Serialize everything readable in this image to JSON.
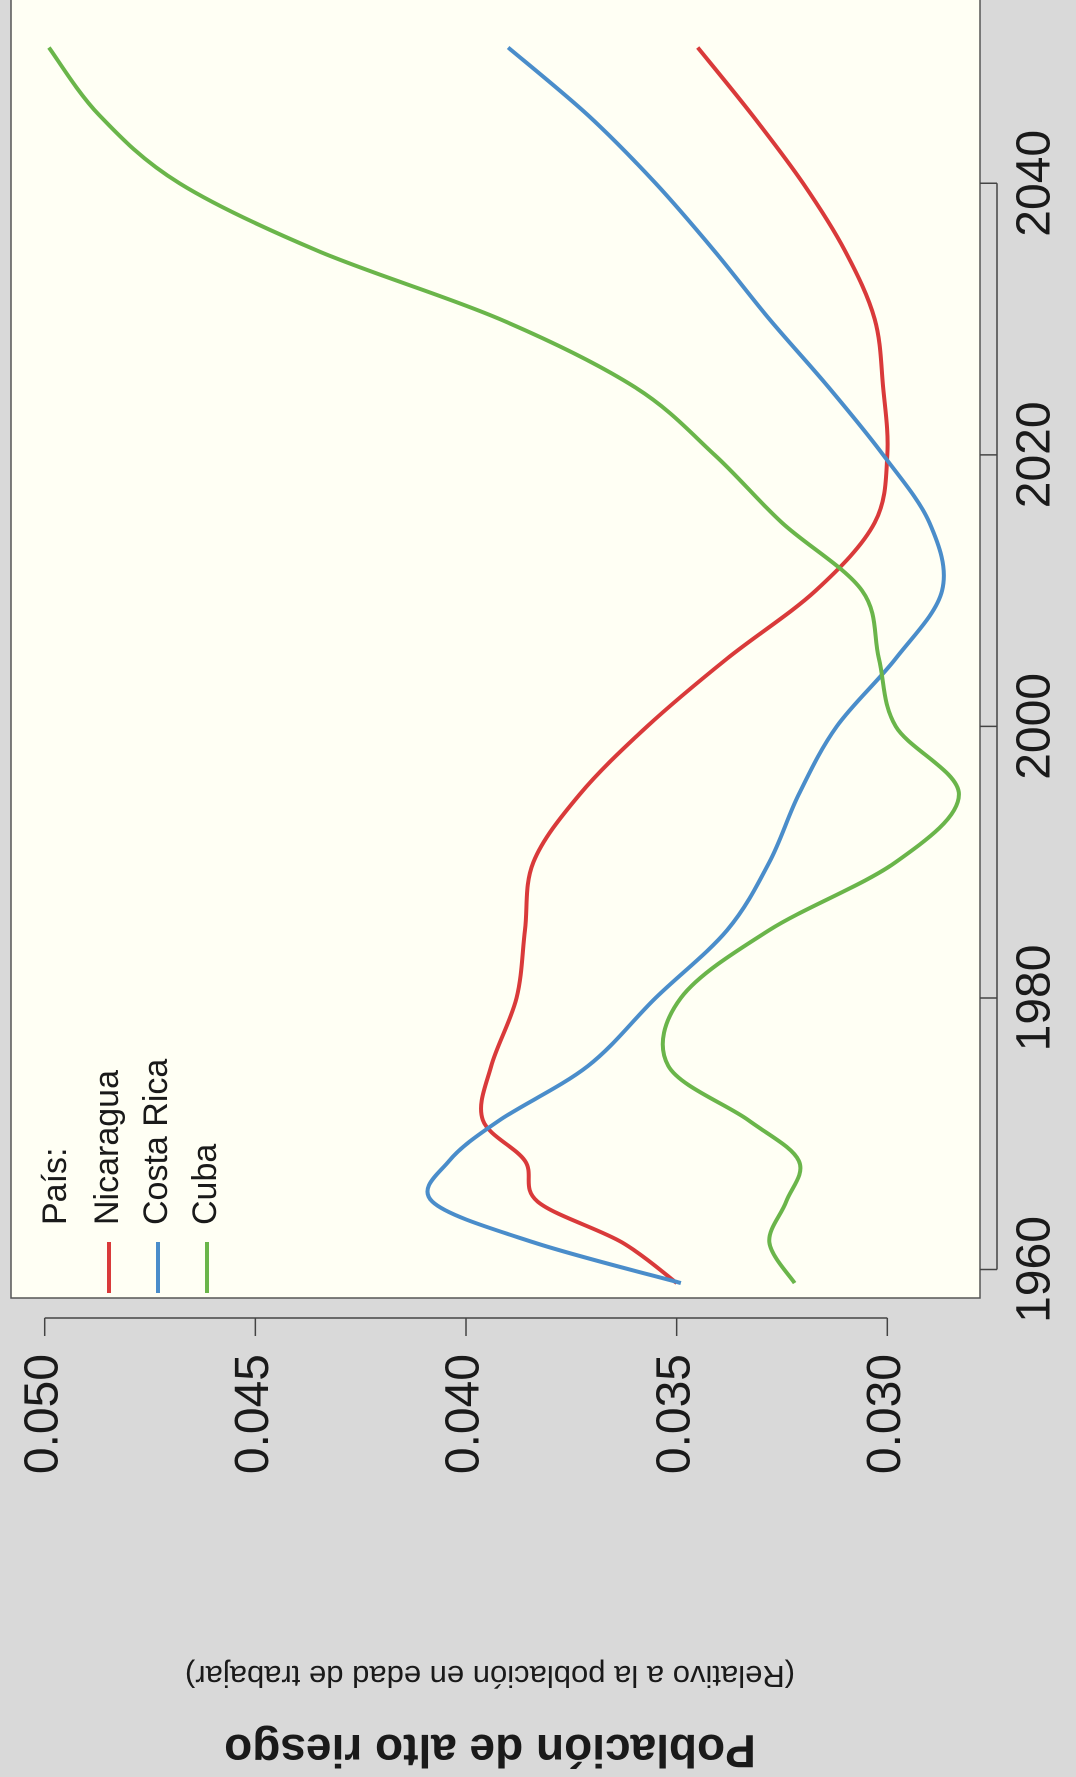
{
  "chart_data": {
    "type": "line",
    "title": "Población de alto riesgo",
    "subtitle": "(Relativo a la población en edad de trabajar)",
    "legend_title": "País:",
    "legend": "top-left",
    "x": [
      1959,
      1962,
      1965,
      1968,
      1971,
      1975,
      1980,
      1985,
      1990,
      1995,
      2000,
      2005,
      2010,
      2015,
      2020,
      2025,
      2030,
      2035,
      2040,
      2045,
      2050
    ],
    "series": [
      {
        "name": "Nicaragua",
        "color": "#d93a3a",
        "values": [
          0.035,
          0.0363,
          0.0383,
          0.0386,
          0.0396,
          0.0394,
          0.0388,
          0.0386,
          0.0384,
          0.0373,
          0.0357,
          0.0338,
          0.0317,
          0.0303,
          0.03,
          0.0301,
          0.0303,
          0.031,
          0.032,
          0.0332,
          0.0345
        ]
      },
      {
        "name": "Costa Rica",
        "color": "#4a8dca",
        "values": [
          0.0349,
          0.0384,
          0.0408,
          0.0404,
          0.0392,
          0.0371,
          0.0355,
          0.0338,
          0.0328,
          0.0321,
          0.0312,
          0.0298,
          0.0287,
          0.029,
          0.0301,
          0.0314,
          0.0328,
          0.0341,
          0.0355,
          0.0371,
          0.039
        ]
      },
      {
        "name": "Cuba",
        "color": "#6ab54a",
        "values": [
          0.0322,
          0.0328,
          0.0324,
          0.0321,
          0.0333,
          0.0352,
          0.0349,
          0.0328,
          0.0298,
          0.0283,
          0.0298,
          0.0302,
          0.0306,
          0.0325,
          0.0341,
          0.036,
          0.0392,
          0.0435,
          0.0468,
          0.0487,
          0.0499
        ]
      }
    ],
    "xlim": [
      1957.9,
      2053.5
    ],
    "xticks": [
      1960,
      1980,
      2000,
      2020,
      2040
    ],
    "ylim": [
      0.0278,
      0.0508
    ],
    "yticks": [
      {
        "value": 0.05,
        "label": "0.050"
      },
      0.045,
      {
        "value": 0.04,
        "label": "0.040"
      },
      0.035,
      {
        "value": 0.03,
        "label": "0.030"
      }
    ]
  }
}
